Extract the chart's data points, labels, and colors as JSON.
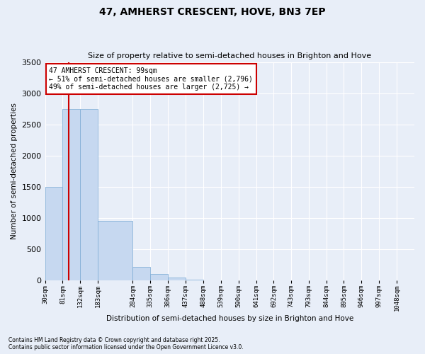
{
  "title": "47, AMHERST CRESCENT, HOVE, BN3 7EP",
  "subtitle": "Size of property relative to semi-detached houses in Brighton and Hove",
  "xlabel": "Distribution of semi-detached houses by size in Brighton and Hove",
  "ylabel": "Number of semi-detached properties",
  "bar_color": "#c6d8f0",
  "bar_edge_color": "#7aaad4",
  "background_color": "#e8eef8",
  "fig_background_color": "#e8eef8",
  "grid_color": "#ffffff",
  "bin_labels": [
    "30sqm",
    "81sqm",
    "132sqm",
    "183sqm",
    "284sqm",
    "335sqm",
    "386sqm",
    "437sqm",
    "488sqm",
    "539sqm",
    "590sqm",
    "641sqm",
    "692sqm",
    "743sqm",
    "793sqm",
    "844sqm",
    "895sqm",
    "946sqm",
    "997sqm",
    "1048sqm"
  ],
  "bar_values": [
    1500,
    2750,
    2750,
    950,
    215,
    100,
    50,
    12,
    3,
    0,
    0,
    0,
    0,
    0,
    0,
    0,
    0,
    0,
    0,
    0
  ],
  "property_size_label": "99",
  "property_label": "47 AMHERST CRESCENT: 99sqm",
  "pct_smaller": 51,
  "n_smaller": 2796,
  "pct_larger": 49,
  "n_larger": 2725,
  "annotation_box_color": "#ffffff",
  "annotation_box_edge_color": "#cc0000",
  "vline_color": "#cc0000",
  "ylim": [
    0,
    3500
  ],
  "yticks": [
    0,
    500,
    1000,
    1500,
    2000,
    2500,
    3000,
    3500
  ],
  "footnote1": "Contains HM Land Registry data © Crown copyright and database right 2025.",
  "footnote2": "Contains public sector information licensed under the Open Government Licence v3.0."
}
